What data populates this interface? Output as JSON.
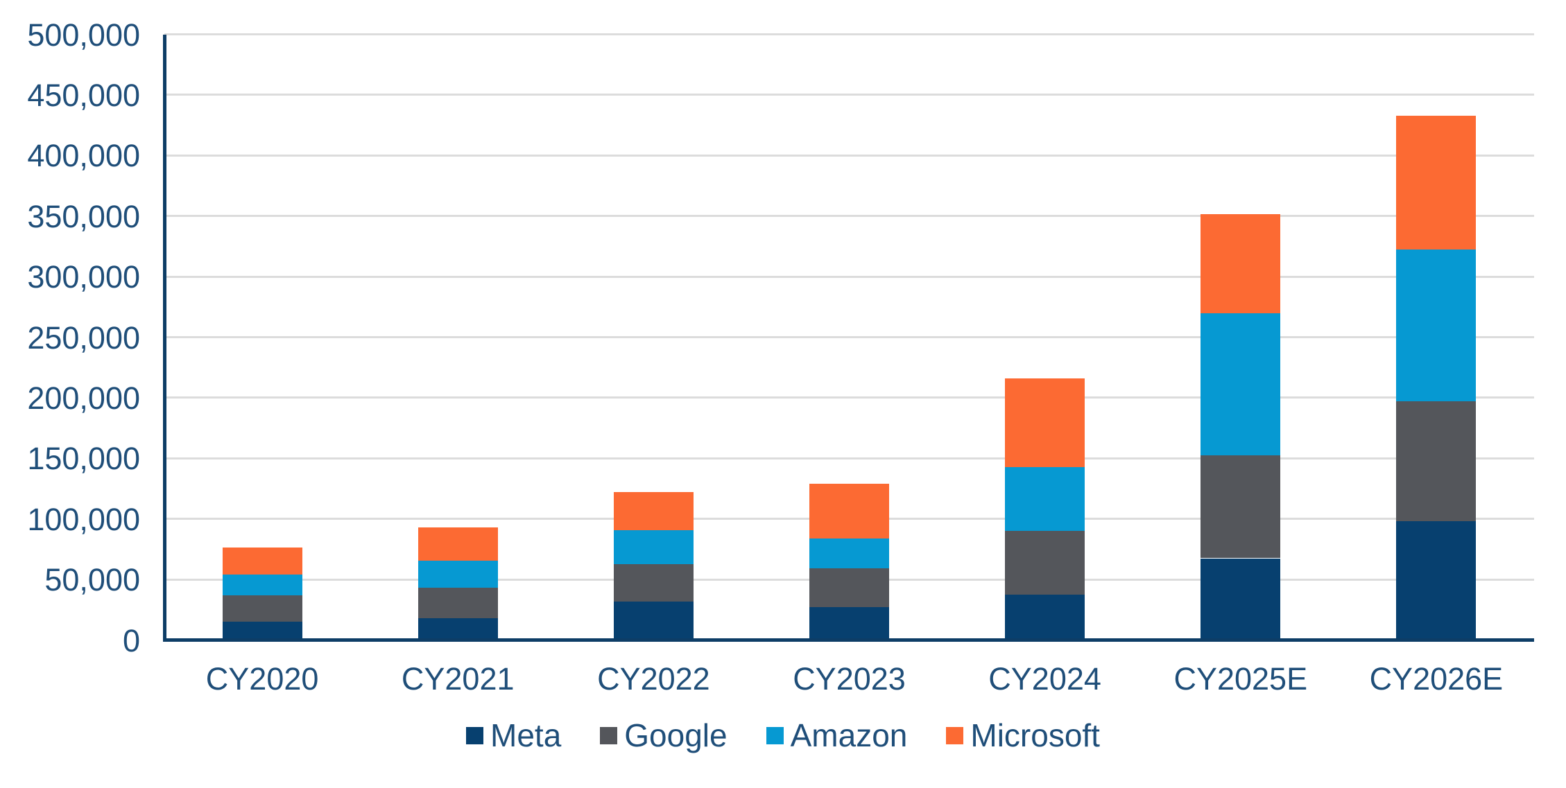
{
  "chart_data": {
    "type": "bar",
    "stacked": true,
    "title": "",
    "xlabel": "",
    "ylabel": "",
    "categories": [
      "CY2020",
      "CY2021",
      "CY2022",
      "CY2023",
      "CY2024",
      "CY2025E",
      "CY2026E"
    ],
    "series": [
      {
        "name": "Meta",
        "color": "#07406f",
        "values": [
          15000,
          18000,
          31500,
          27000,
          37500,
          67500,
          98000
        ]
      },
      {
        "name": "Google",
        "color": "#54565b",
        "values": [
          22000,
          25000,
          31000,
          32000,
          52500,
          85000,
          99000
        ]
      },
      {
        "name": "Amazon",
        "color": "#0699d2",
        "values": [
          17000,
          22500,
          28000,
          25000,
          52500,
          117500,
          125500
        ]
      },
      {
        "name": "Microsoft",
        "color": "#fc6a33",
        "values": [
          22500,
          27500,
          31500,
          45000,
          73500,
          81500,
          110500
        ]
      }
    ],
    "totals": [
      76500,
      93000,
      122000,
      129000,
      216000,
      351500,
      433000
    ],
    "y_axis": {
      "min": 0,
      "max": 500000,
      "step": 50000,
      "tick_labels": [
        "0",
        "50,000",
        "100,000",
        "150,000",
        "200,000",
        "250,000",
        "300,000",
        "350,000",
        "400,000",
        "450,000",
        "500,000"
      ]
    },
    "grid": true,
    "legend_position": "bottom",
    "legend_entries": [
      "Meta",
      "Google",
      "Amazon",
      "Microsoft"
    ]
  },
  "colors": {
    "background": "#ffffff",
    "gridline": "#dcdcdc",
    "axis_line": "#0d3d66",
    "tick_text": "#1f4e79",
    "meta": "#07406f",
    "google": "#54565b",
    "amazon": "#0699d2",
    "microsoft": "#fc6a33"
  }
}
